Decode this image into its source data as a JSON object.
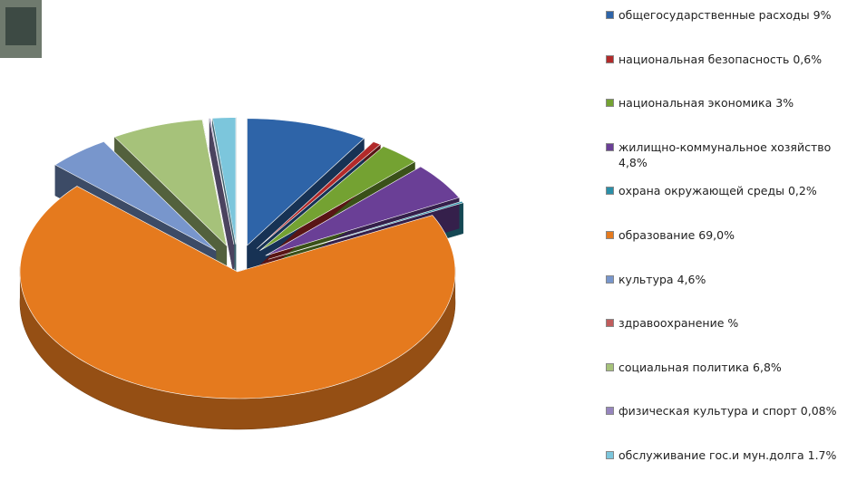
{
  "chart_data": {
    "type": "pie3d",
    "categories": [
      "общегосударственные расходы",
      "национальная безопасность",
      "национальная экономика",
      "жилищно-коммунальное хозяйство",
      "охрана окружающей среды",
      "образование",
      "культура ",
      "здравоохранение",
      "социальная политика",
      "физическая культура и спорт",
      "обслуживание гос.и мун.долга"
    ],
    "values": [
      9,
      0.6,
      3,
      4.8,
      0.2,
      69.0,
      4.6,
      null,
      6.8,
      0.08,
      1.7
    ],
    "value_labels": [
      "9%",
      "0,6%",
      "3%",
      "4,8%",
      "0,2%",
      "69,0%",
      "4,6%",
      "%",
      "6,8%",
      "0,08%",
      "1.7%"
    ],
    "colors": [
      "#2e64a8",
      "#b22a2a",
      "#74a232",
      "#6a3f96",
      "#2a8fa8",
      "#e57a1e",
      "#7896cc",
      "#c05c5c",
      "#a6c27a",
      "#9685be",
      "#7cc6dc"
    ],
    "legend": "right"
  }
}
